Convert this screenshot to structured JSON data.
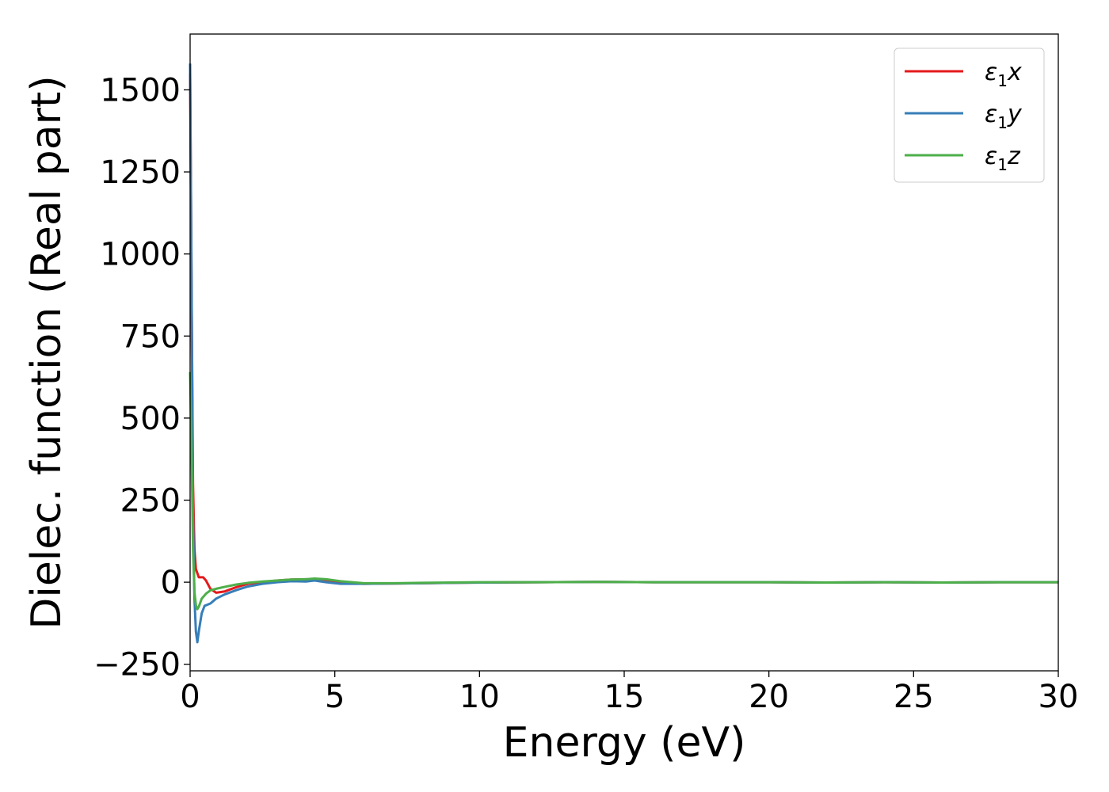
{
  "chart_data": {
    "type": "line",
    "title": "",
    "xlabel": "Energy (eV)",
    "ylabel": "Dielec. function (Real part)",
    "xlim": [
      0,
      30
    ],
    "ylim": [
      -270,
      1670
    ],
    "xticks": [
      0,
      5,
      10,
      15,
      20,
      25,
      30
    ],
    "xtick_labels": [
      "0",
      "5",
      "10",
      "15",
      "20",
      "25",
      "30"
    ],
    "yticks": [
      -250,
      0,
      250,
      500,
      750,
      1000,
      1250,
      1500
    ],
    "ytick_labels": [
      "−250",
      "0",
      "250",
      "500",
      "750",
      "1000",
      "1250",
      "1500"
    ],
    "grid": false,
    "legend_position": "top-right",
    "series": [
      {
        "name": "ε1x",
        "legend_main": "ε",
        "legend_sub": "1",
        "legend_suffix": "x",
        "color": "#e41a1c",
        "x": [
          0.0,
          0.05,
          0.1,
          0.15,
          0.2,
          0.3,
          0.45,
          0.55,
          0.7,
          0.9,
          1.2,
          1.6,
          2.0,
          2.5,
          3.0,
          3.5,
          4.0,
          4.3,
          4.7,
          5.2,
          6.0,
          7.0,
          8.0,
          9.0,
          10.0,
          12.0,
          14.0,
          16.0,
          18.0,
          20.0,
          22.0,
          24.0,
          26.0,
          28.0,
          30.0
        ],
        "y": [
          1550,
          900,
          300,
          100,
          40,
          15,
          15,
          5,
          -20,
          -32,
          -28,
          -15,
          -5,
          0,
          5,
          8,
          9,
          8,
          5,
          -2,
          -5,
          -4,
          -3,
          -2,
          -1,
          0,
          1,
          0,
          0,
          0,
          -1,
          0,
          -1,
          0,
          0
        ]
      },
      {
        "name": "ε1y",
        "legend_main": "ε",
        "legend_sub": "1",
        "legend_suffix": "y",
        "color": "#377eb8",
        "x": [
          0.0,
          0.05,
          0.1,
          0.15,
          0.2,
          0.25,
          0.3,
          0.4,
          0.5,
          0.7,
          0.9,
          1.2,
          1.6,
          2.0,
          2.5,
          3.0,
          3.5,
          4.0,
          4.3,
          4.7,
          5.2,
          6.0,
          7.0,
          8.0,
          9.0,
          10.0,
          12.0,
          14.0,
          16.0,
          18.0,
          20.0,
          22.0,
          24.0,
          26.0,
          28.0,
          30.0
        ],
        "y": [
          1580,
          900,
          200,
          -50,
          -150,
          -183,
          -150,
          -95,
          -72,
          -65,
          -50,
          -37,
          -24,
          -13,
          -5,
          0,
          3,
          2,
          5,
          0,
          -5,
          -5,
          -4,
          -3,
          -2,
          -1,
          0,
          1,
          0,
          0,
          0,
          -1,
          0,
          -1,
          0,
          0
        ]
      },
      {
        "name": "ε1z",
        "legend_main": "ε",
        "legend_sub": "1",
        "legend_suffix": "z",
        "color": "#4daf4a",
        "x": [
          0.0,
          0.05,
          0.1,
          0.15,
          0.2,
          0.25,
          0.3,
          0.4,
          0.55,
          0.7,
          0.9,
          1.2,
          1.6,
          2.0,
          2.5,
          3.0,
          3.5,
          4.0,
          4.3,
          4.7,
          5.2,
          6.0,
          7.0,
          8.0,
          9.0,
          10.0,
          12.0,
          14.0,
          16.0,
          18.0,
          20.0,
          22.0,
          24.0,
          26.0,
          28.0,
          30.0
        ],
        "y": [
          640,
          400,
          100,
          -30,
          -70,
          -82,
          -75,
          -50,
          -35,
          -25,
          -20,
          -14,
          -7,
          -2,
          2,
          5,
          8,
          9,
          11,
          9,
          3,
          -3,
          -3,
          -2,
          -1,
          0,
          0,
          1,
          0,
          0,
          0,
          -1,
          0,
          -1,
          0,
          0
        ]
      }
    ]
  }
}
